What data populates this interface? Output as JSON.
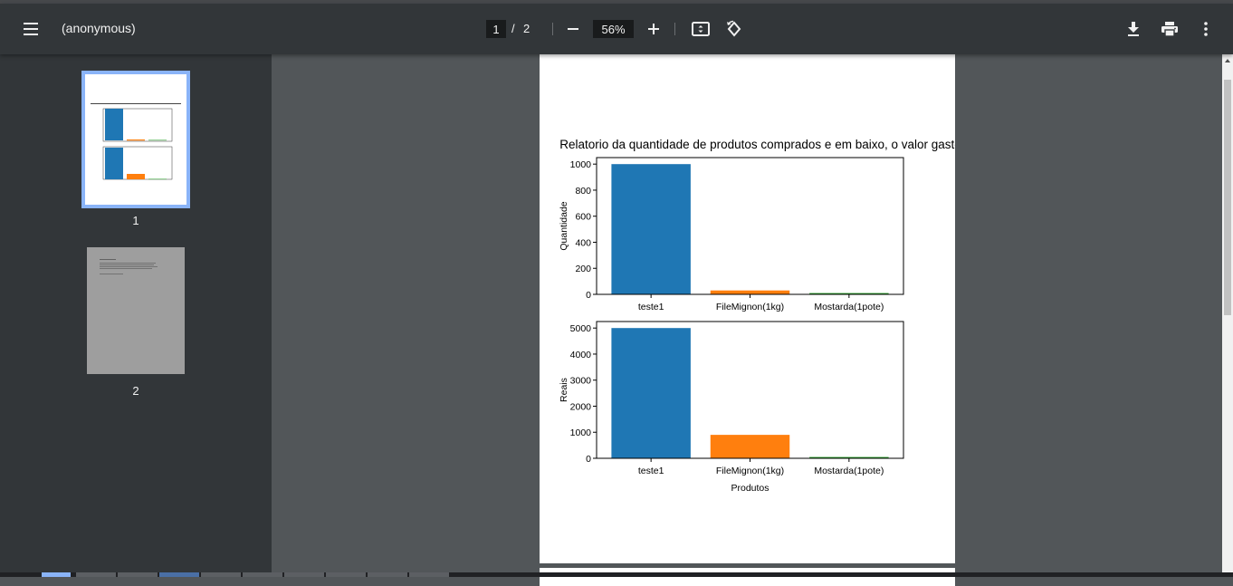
{
  "toolbar": {
    "title": "(anonymous)",
    "current_page": "1",
    "page_separator": "/",
    "total_pages": "2",
    "zoom": "56%"
  },
  "thumbnails": [
    {
      "label": "1",
      "selected": true
    },
    {
      "label": "2",
      "selected": false
    }
  ],
  "icons": {
    "menu": "hamburger-menu-icon",
    "zoom_out": "minus-icon",
    "zoom_in": "plus-icon",
    "fit": "fit-to-page-icon",
    "rotate": "rotate-counterclockwise-icon",
    "download": "download-icon",
    "print": "print-icon",
    "more": "more-vert-icon"
  },
  "colors": {
    "toolbar_bg": "#323639",
    "viewer_bg": "#525659",
    "selected_thumb_border": "#8ab4f8",
    "bar_blue": "#1f77b4",
    "bar_orange": "#ff7f0e",
    "bar_green": "#2ca02c"
  },
  "chart_data": [
    {
      "type": "bar",
      "title": "Relatorio da quantidade de produtos comprados e em baixo, o valor gasto",
      "categories": [
        "teste1",
        "FileMignon(1kg)",
        "Mostarda(1pote)"
      ],
      "values": [
        1000,
        30,
        10
      ],
      "colors": [
        "#1f77b4",
        "#ff7f0e",
        "#2ca02c"
      ],
      "xlabel": "",
      "ylabel": "Quantidade",
      "ylim": [
        0,
        1050
      ],
      "yticks": [
        0,
        200,
        400,
        600,
        800,
        1000
      ]
    },
    {
      "type": "bar",
      "title": "",
      "categories": [
        "teste1",
        "FileMignon(1kg)",
        "Mostarda(1pote)"
      ],
      "values": [
        5000,
        900,
        50
      ],
      "colors": [
        "#1f77b4",
        "#ff7f0e",
        "#2ca02c"
      ],
      "xlabel": "Produtos",
      "ylabel": "Reais",
      "ylim": [
        0,
        5250
      ],
      "yticks": [
        0,
        1000,
        2000,
        3000,
        4000,
        5000
      ]
    }
  ]
}
